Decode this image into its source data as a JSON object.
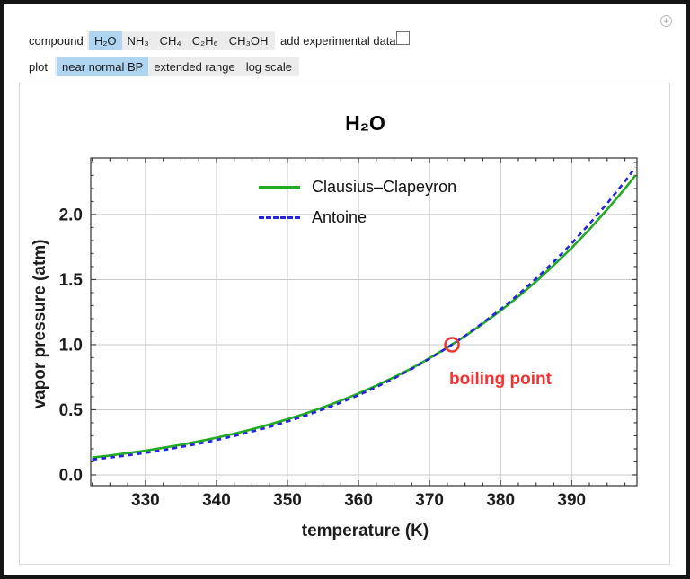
{
  "window": {
    "expander_icon": "plus-circle"
  },
  "controls": {
    "compound_label": "compound",
    "compounds": [
      {
        "label": "H₂O",
        "selected": true
      },
      {
        "label": "NH₃",
        "selected": false
      },
      {
        "label": "CH₄",
        "selected": false
      },
      {
        "label": "C₂H₆",
        "selected": false
      },
      {
        "label": "CH₃OH",
        "selected": false
      }
    ],
    "experimental_label": "add experimental data",
    "experimental_checked": false,
    "plot_label": "plot",
    "plot_modes": [
      {
        "label": "near normal BP",
        "selected": true
      },
      {
        "label": "extended range",
        "selected": false
      },
      {
        "label": "log scale",
        "selected": false
      }
    ]
  },
  "chart_data": {
    "type": "line",
    "title": "H₂O",
    "xlabel": "temperature (K)",
    "ylabel": "vapor pressure (atm)",
    "xlim": [
      322.3,
      399.2
    ],
    "ylim": [
      -0.083,
      2.434
    ],
    "x_ticks": [
      330,
      340,
      350,
      360,
      370,
      380,
      390
    ],
    "y_ticks": [
      0.0,
      0.5,
      1.0,
      1.5,
      2.0
    ],
    "x_minor_step": 2.5,
    "y_minor_step": 0.1,
    "grid": true,
    "legend_position": "top-center-inside",
    "colors": {
      "grid": "#c8c8c8",
      "frame": "#3f3f3f"
    },
    "x": [
      322.5,
      325,
      327.5,
      330,
      332.5,
      335,
      337.5,
      340,
      342.5,
      345,
      347.5,
      350,
      352.5,
      355,
      357.5,
      360,
      362.5,
      365,
      367.5,
      370,
      372.5,
      375,
      377.5,
      380,
      382.5,
      385,
      387.5,
      390,
      392.5,
      395,
      397.5,
      399
    ],
    "series": [
      {
        "name": "Clausius–Clapeyron",
        "color": "#22aa22",
        "style": "solid",
        "values": [
          0.133,
          0.149,
          0.167,
          0.186,
          0.208,
          0.231,
          0.257,
          0.285,
          0.316,
          0.35,
          0.387,
          0.427,
          0.471,
          0.518,
          0.57,
          0.625,
          0.685,
          0.75,
          0.82,
          0.896,
          0.978,
          1.066,
          1.16,
          1.261,
          1.369,
          1.486,
          1.611,
          1.743,
          1.885,
          2.038,
          2.199,
          2.301
        ]
      },
      {
        "name": "Antoine",
        "color": "#2424dd",
        "style": "dashed",
        "values": [
          0.118,
          0.133,
          0.15,
          0.169,
          0.19,
          0.214,
          0.239,
          0.267,
          0.298,
          0.332,
          0.369,
          0.41,
          0.454,
          0.503,
          0.555,
          0.612,
          0.674,
          0.741,
          0.814,
          0.892,
          0.977,
          1.068,
          1.167,
          1.272,
          1.386,
          1.507,
          1.638,
          1.777,
          1.927,
          2.085,
          2.255,
          2.363
        ]
      }
    ],
    "annotation": {
      "label": "boiling point",
      "x": 373.15,
      "y": 1.0,
      "color": "#f53131"
    }
  }
}
